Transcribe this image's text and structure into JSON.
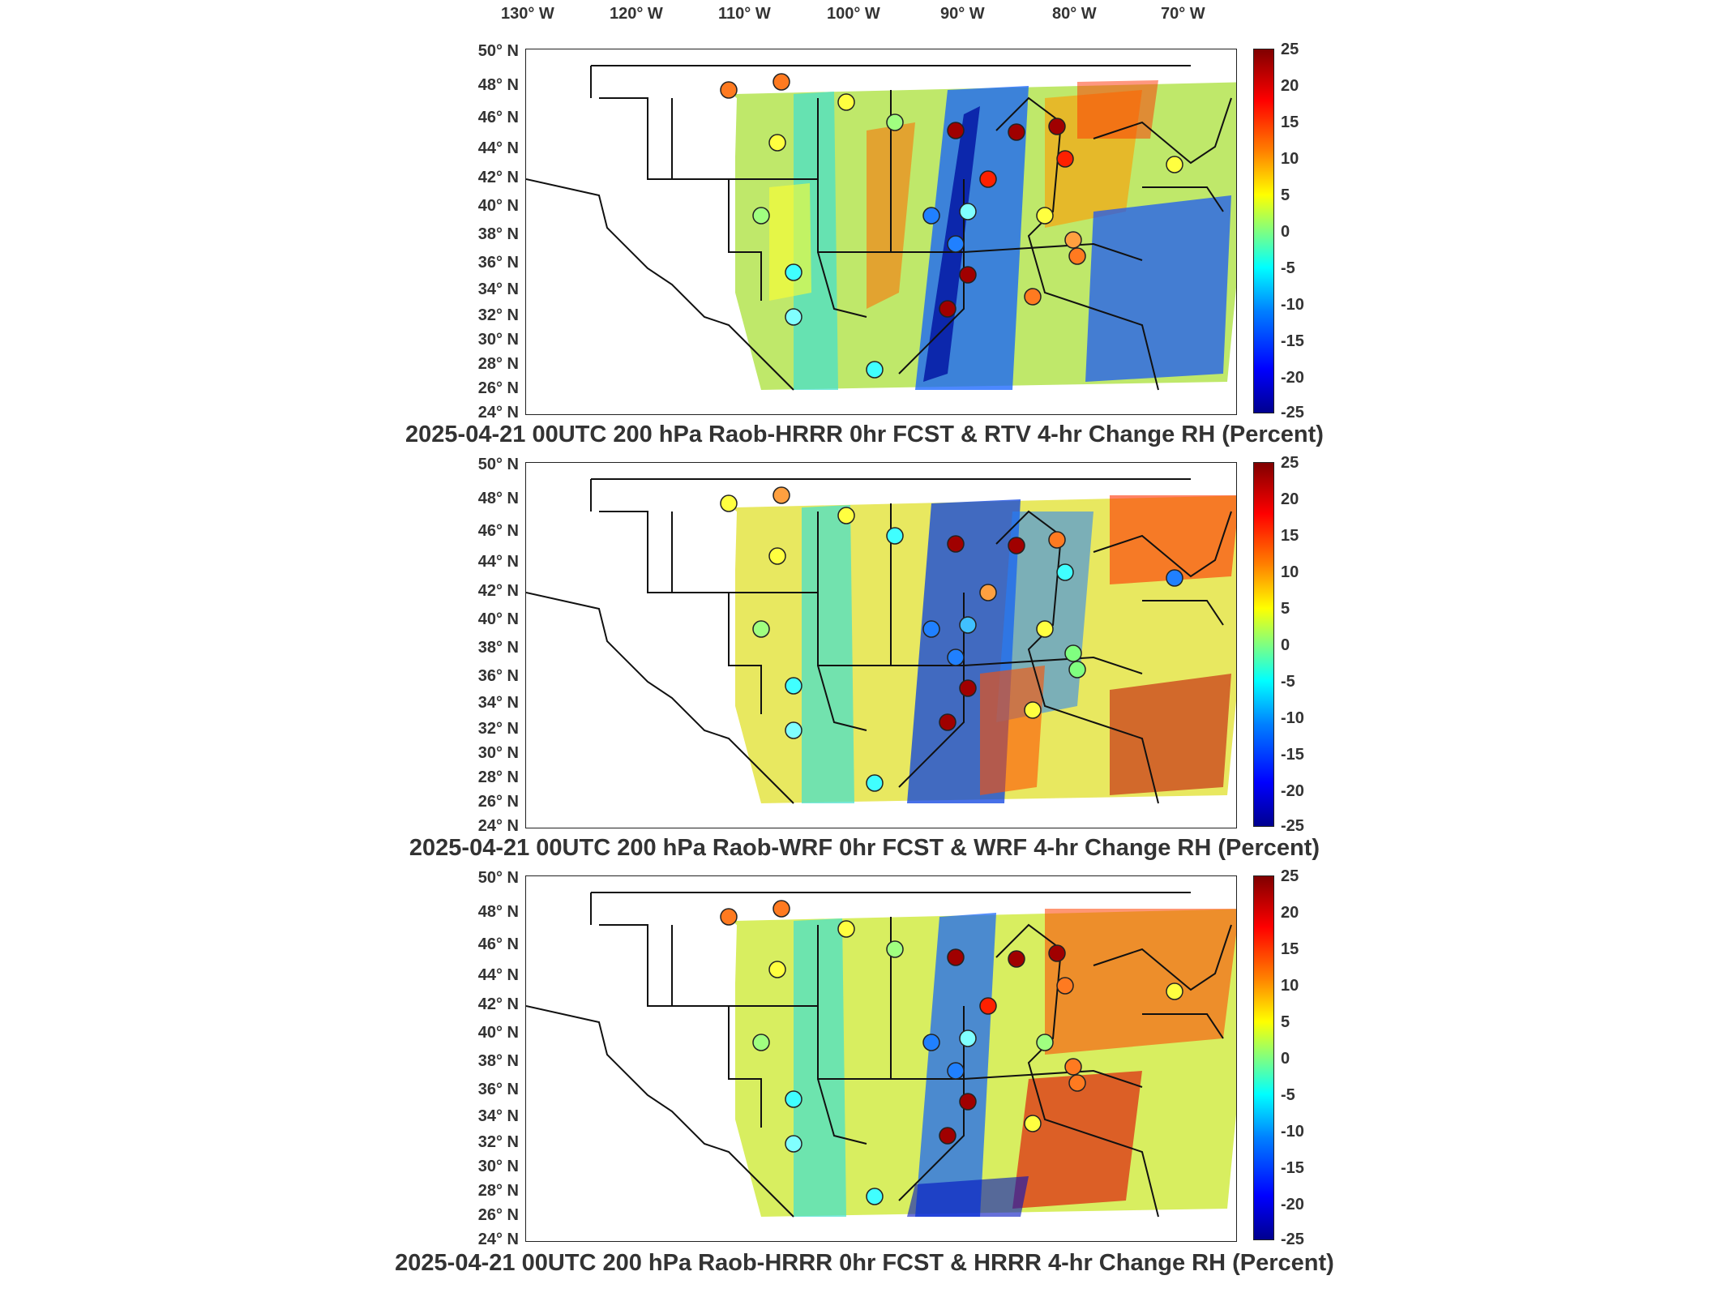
{
  "longitude_labels": [
    "130° W",
    "120° W",
    "110° W",
    "100° W",
    "90° W",
    "80° W",
    "70° W"
  ],
  "latitude_labels": [
    "50° N",
    "48° N",
    "46° N",
    "44° N",
    "42° N",
    "40° N",
    "38° N",
    "36° N",
    "34° N",
    "32° N",
    "30° N",
    "28° N",
    "26° N",
    "24° N"
  ],
  "colorbar_ticks": [
    "25",
    "20",
    "15",
    "10",
    "5",
    "0",
    "-5",
    "-10",
    "-15",
    "-20",
    "-25"
  ],
  "colorbar": {
    "min": -25,
    "max": 25,
    "colors": [
      "#00008f",
      "#0000ff",
      "#0080ff",
      "#00ffff",
      "#80ff80",
      "#ffff00",
      "#ff8000",
      "#ff0000",
      "#800000"
    ]
  },
  "panels": [
    {
      "title": "2025-04-21 00UTC 200 hPa Raob-HRRR 0hr FCST & RTV 4-hr Change RH (Percent)"
    },
    {
      "title": "2025-04-21 00UTC 200 hPa Raob-WRF 0hr FCST & WRF 4-hr Change RH (Percent)"
    },
    {
      "title": "2025-04-21 00UTC 200 hPa Raob-HRRR 0hr FCST & HRRR 4-hr Change RH (Percent)"
    }
  ]
}
